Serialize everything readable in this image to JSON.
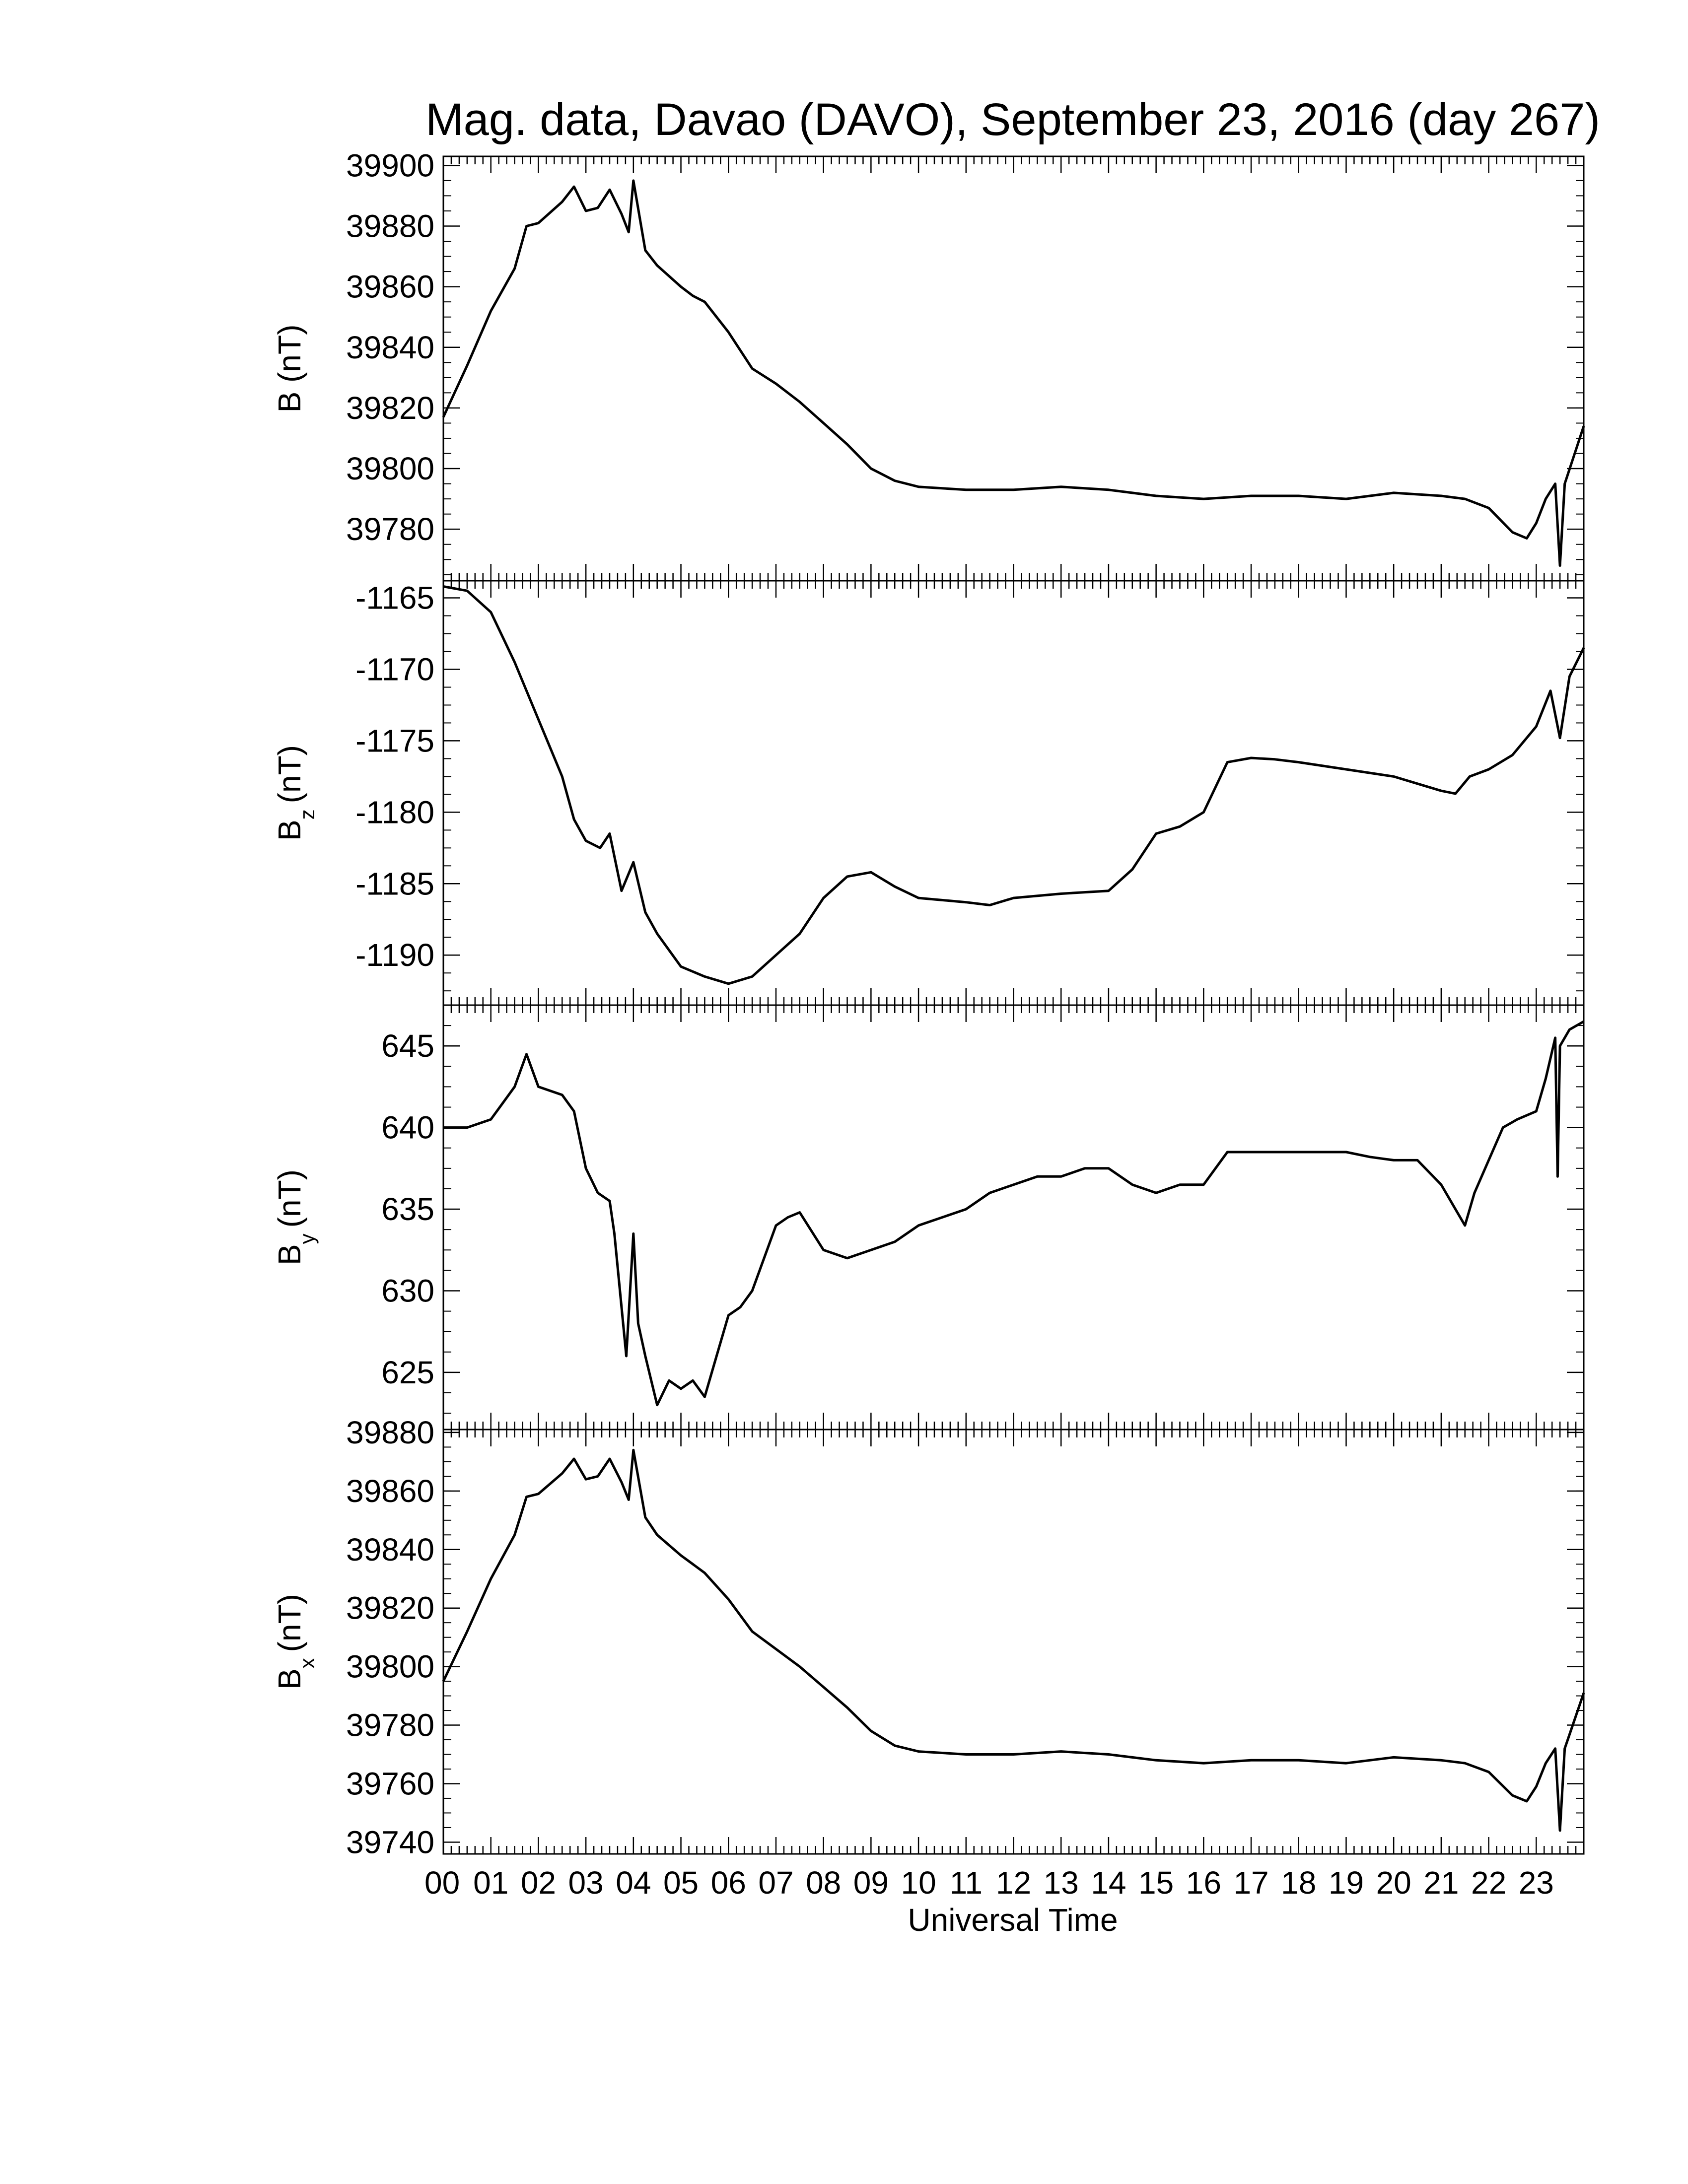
{
  "title": "Mag. data, Davao (DAVO), September 23, 2016 (day 267)",
  "xlabel": "Universal Time",
  "colors": {
    "line": "#000000",
    "background": "#ffffff"
  },
  "chart_data": {
    "type": "line",
    "x_unit": "UT hour",
    "x_range": [
      0,
      24
    ],
    "x_tick_labels": [
      "00",
      "01",
      "02",
      "03",
      "04",
      "05",
      "06",
      "07",
      "08",
      "09",
      "10",
      "11",
      "12",
      "13",
      "14",
      "15",
      "16",
      "17",
      "18",
      "19",
      "20",
      "21",
      "22",
      "23"
    ],
    "panels": [
      {
        "ylabel_main": "B (nT)",
        "ylabel_sub": "",
        "ylim": [
          39763,
          39903
        ],
        "yticks": [
          39780,
          39800,
          39820,
          39840,
          39860,
          39880,
          39900
        ],
        "ytick_labels": [
          "39780",
          "39800",
          "39820",
          "39840",
          "39860",
          "39880",
          "39900"
        ],
        "x": [
          0,
          0.5,
          1,
          1.5,
          1.75,
          2,
          2.5,
          2.75,
          3,
          3.25,
          3.5,
          3.75,
          3.9,
          4,
          4.25,
          4.5,
          5,
          5.25,
          5.5,
          6,
          6.5,
          7,
          7.5,
          8,
          8.5,
          9,
          9.5,
          10,
          11,
          12,
          13,
          14,
          15,
          16,
          17,
          18,
          19,
          20,
          21,
          21.5,
          22,
          22.5,
          22.8,
          23,
          23.2,
          23.4,
          23.5,
          23.6,
          24
        ],
        "y": [
          39817,
          39834,
          39852,
          39866,
          39880,
          39881,
          39888,
          39893,
          39885,
          39886,
          39892,
          39884,
          39878,
          39895,
          39872,
          39867,
          39860,
          39857,
          39855,
          39845,
          39833,
          39828,
          39822,
          39815,
          39808,
          39800,
          39796,
          39794,
          39793,
          39793,
          39794,
          39793,
          39791,
          39790,
          39791,
          39791,
          39790,
          39792,
          39791,
          39790,
          39787,
          39779,
          39777,
          39782,
          39790,
          39795,
          39768,
          39795,
          39814
        ]
      },
      {
        "ylabel_main": "B",
        "ylabel_sub": "z",
        "ylabel_unit": "(nT)",
        "ylim": [
          -1193.5,
          -1163.8
        ],
        "yticks": [
          -1190,
          -1185,
          -1180,
          -1175,
          -1170,
          -1165
        ],
        "ytick_labels": [
          "-1190",
          "-1185",
          "-1180",
          "-1175",
          "-1170",
          "-1165"
        ],
        "x": [
          0,
          0.5,
          1,
          1.5,
          2,
          2.5,
          2.75,
          3,
          3.3,
          3.5,
          3.75,
          4,
          4.25,
          4.5,
          5,
          5.5,
          6,
          6.5,
          7,
          7.5,
          8,
          8.5,
          9,
          9.5,
          10,
          11,
          11.5,
          12,
          13,
          14,
          14.5,
          15,
          15.5,
          16,
          16.5,
          17,
          17.5,
          18,
          19,
          20,
          20.5,
          21,
          21.3,
          21.6,
          22,
          22.5,
          23,
          23.3,
          23.5,
          23.7,
          24
        ],
        "y": [
          -1164.2,
          -1164.5,
          -1166,
          -1169.5,
          -1173.5,
          -1177.5,
          -1180.5,
          -1182,
          -1182.5,
          -1181.5,
          -1185.5,
          -1183.5,
          -1187,
          -1188.5,
          -1190.8,
          -1191.5,
          -1192,
          -1191.5,
          -1190,
          -1188.5,
          -1186,
          -1184.5,
          -1184.2,
          -1185.2,
          -1186,
          -1186.3,
          -1186.5,
          -1186,
          -1185.7,
          -1185.5,
          -1184,
          -1181.5,
          -1181,
          -1180,
          -1176.5,
          -1176.2,
          -1176.3,
          -1176.5,
          -1177,
          -1177.5,
          -1178,
          -1178.5,
          -1178.7,
          -1177.5,
          -1177,
          -1176,
          -1174,
          -1171.5,
          -1174.8,
          -1170.5,
          -1168.5
        ]
      },
      {
        "ylabel_main": "B",
        "ylabel_sub": "y",
        "ylabel_unit": "(nT)",
        "ylim": [
          621.5,
          647.5
        ],
        "yticks": [
          625,
          630,
          635,
          640,
          645
        ],
        "ytick_labels": [
          "625",
          "630",
          "635",
          "640",
          "645"
        ],
        "x": [
          0,
          0.5,
          1,
          1.5,
          1.75,
          2,
          2.5,
          2.75,
          3,
          3.25,
          3.5,
          3.6,
          3.75,
          3.85,
          4,
          4.1,
          4.25,
          4.5,
          4.75,
          5,
          5.25,
          5.5,
          5.75,
          6,
          6.25,
          6.5,
          7,
          7.25,
          7.5,
          8,
          8.5,
          9,
          9.5,
          10,
          10.5,
          11,
          11.5,
          12,
          12.5,
          13,
          13.5,
          14,
          14.5,
          15,
          15.5,
          16,
          16.5,
          17,
          17.5,
          18,
          18.5,
          19,
          19.5,
          20,
          20.5,
          21,
          21.3,
          21.5,
          21.7,
          22,
          22.3,
          22.6,
          23,
          23.2,
          23.4,
          23.45,
          23.5,
          23.7,
          24
        ],
        "y": [
          640,
          640,
          640.5,
          642.5,
          644.5,
          642.5,
          642,
          641,
          637.5,
          636,
          635.5,
          633.5,
          629,
          626,
          633.5,
          628,
          626,
          623,
          624.5,
          624,
          624.5,
          623.5,
          626,
          628.5,
          629,
          630,
          634,
          634.5,
          634.8,
          632.5,
          632,
          632.5,
          633,
          634,
          634.5,
          635,
          636,
          636.5,
          637,
          637,
          637.5,
          637.5,
          636.5,
          636,
          636.5,
          636.5,
          638.5,
          638.5,
          638.5,
          638.5,
          638.5,
          638.5,
          638.2,
          638,
          638,
          636.5,
          635,
          634,
          636,
          638,
          640,
          640.5,
          641,
          643,
          645.5,
          637,
          645,
          646,
          646.5
        ]
      },
      {
        "ylabel_main": "B",
        "ylabel_sub": "x",
        "ylabel_unit": "(nT)",
        "ylim": [
          39736,
          39881
        ],
        "yticks": [
          39740,
          39760,
          39780,
          39800,
          39820,
          39840,
          39860,
          39880
        ],
        "ytick_labels": [
          "39740",
          "39760",
          "39780",
          "39800",
          "39820",
          "39840",
          "39860",
          "39880"
        ],
        "x": [
          0,
          0.5,
          1,
          1.5,
          1.75,
          2,
          2.5,
          2.75,
          3,
          3.25,
          3.5,
          3.75,
          3.9,
          4,
          4.25,
          4.5,
          5,
          5.25,
          5.5,
          6,
          6.5,
          7,
          7.5,
          8,
          8.5,
          9,
          9.5,
          10,
          11,
          12,
          13,
          14,
          15,
          16,
          17,
          18,
          19,
          20,
          21,
          21.5,
          22,
          22.5,
          22.8,
          23,
          23.2,
          23.4,
          23.5,
          23.6,
          24
        ],
        "y": [
          39795,
          39812,
          39830,
          39845,
          39858,
          39859,
          39866,
          39871,
          39864,
          39865,
          39871,
          39863,
          39857,
          39874,
          39851,
          39845,
          39838,
          39835,
          39832,
          39823,
          39812,
          39806,
          39800,
          39793,
          39786,
          39778,
          39773,
          39771,
          39770,
          39770,
          39771,
          39770,
          39768,
          39767,
          39768,
          39768,
          39767,
          39769,
          39768,
          39767,
          39764,
          39756,
          39754,
          39759,
          39767,
          39772,
          39744,
          39772,
          39791
        ]
      }
    ]
  }
}
